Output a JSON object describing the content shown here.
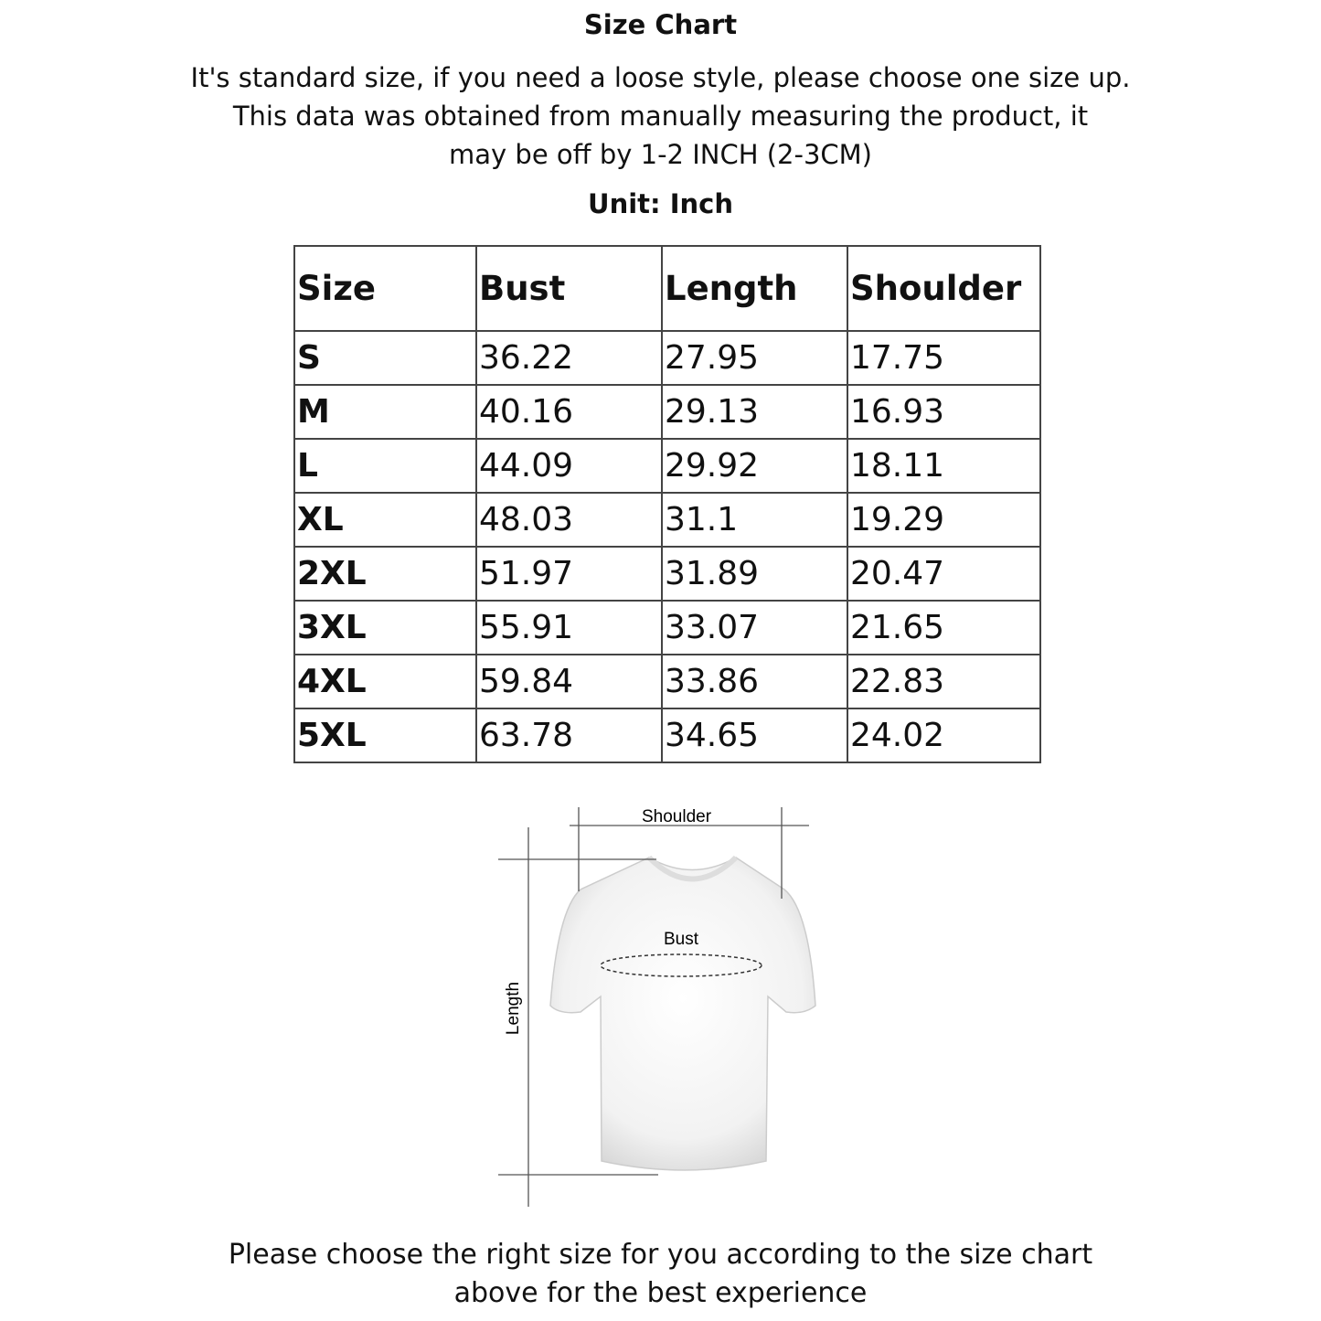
{
  "title": "Size Chart",
  "intro": [
    "It's standard size, if you need a loose style, please choose one size up.",
    "This data was obtained from manually measuring the product, it",
    "may be off by 1-2 INCH (2-3CM)"
  ],
  "unit": "Unit: Inch",
  "table": {
    "headers": [
      "Size",
      "Bust",
      "Length",
      "Shoulder"
    ],
    "rows": [
      [
        "S",
        "36.22",
        "27.95",
        "17.75"
      ],
      [
        "M",
        "40.16",
        "29.13",
        "16.93"
      ],
      [
        "L",
        "44.09",
        "29.92",
        "18.11"
      ],
      [
        "XL",
        "48.03",
        "31.1",
        "19.29"
      ],
      [
        "2XL",
        "51.97",
        "31.89",
        "20.47"
      ],
      [
        "3XL",
        "55.91",
        "33.07",
        "21.65"
      ],
      [
        "4XL",
        "59.84",
        "33.86",
        "22.83"
      ],
      [
        "5XL",
        "63.78",
        "34.65",
        "24.02"
      ]
    ]
  },
  "diagram": {
    "shoulder": "Shoulder",
    "bust": "Bust",
    "length": "Length"
  },
  "footer": [
    "Please choose the right size for you according to the size chart",
    "above for the best experience"
  ]
}
